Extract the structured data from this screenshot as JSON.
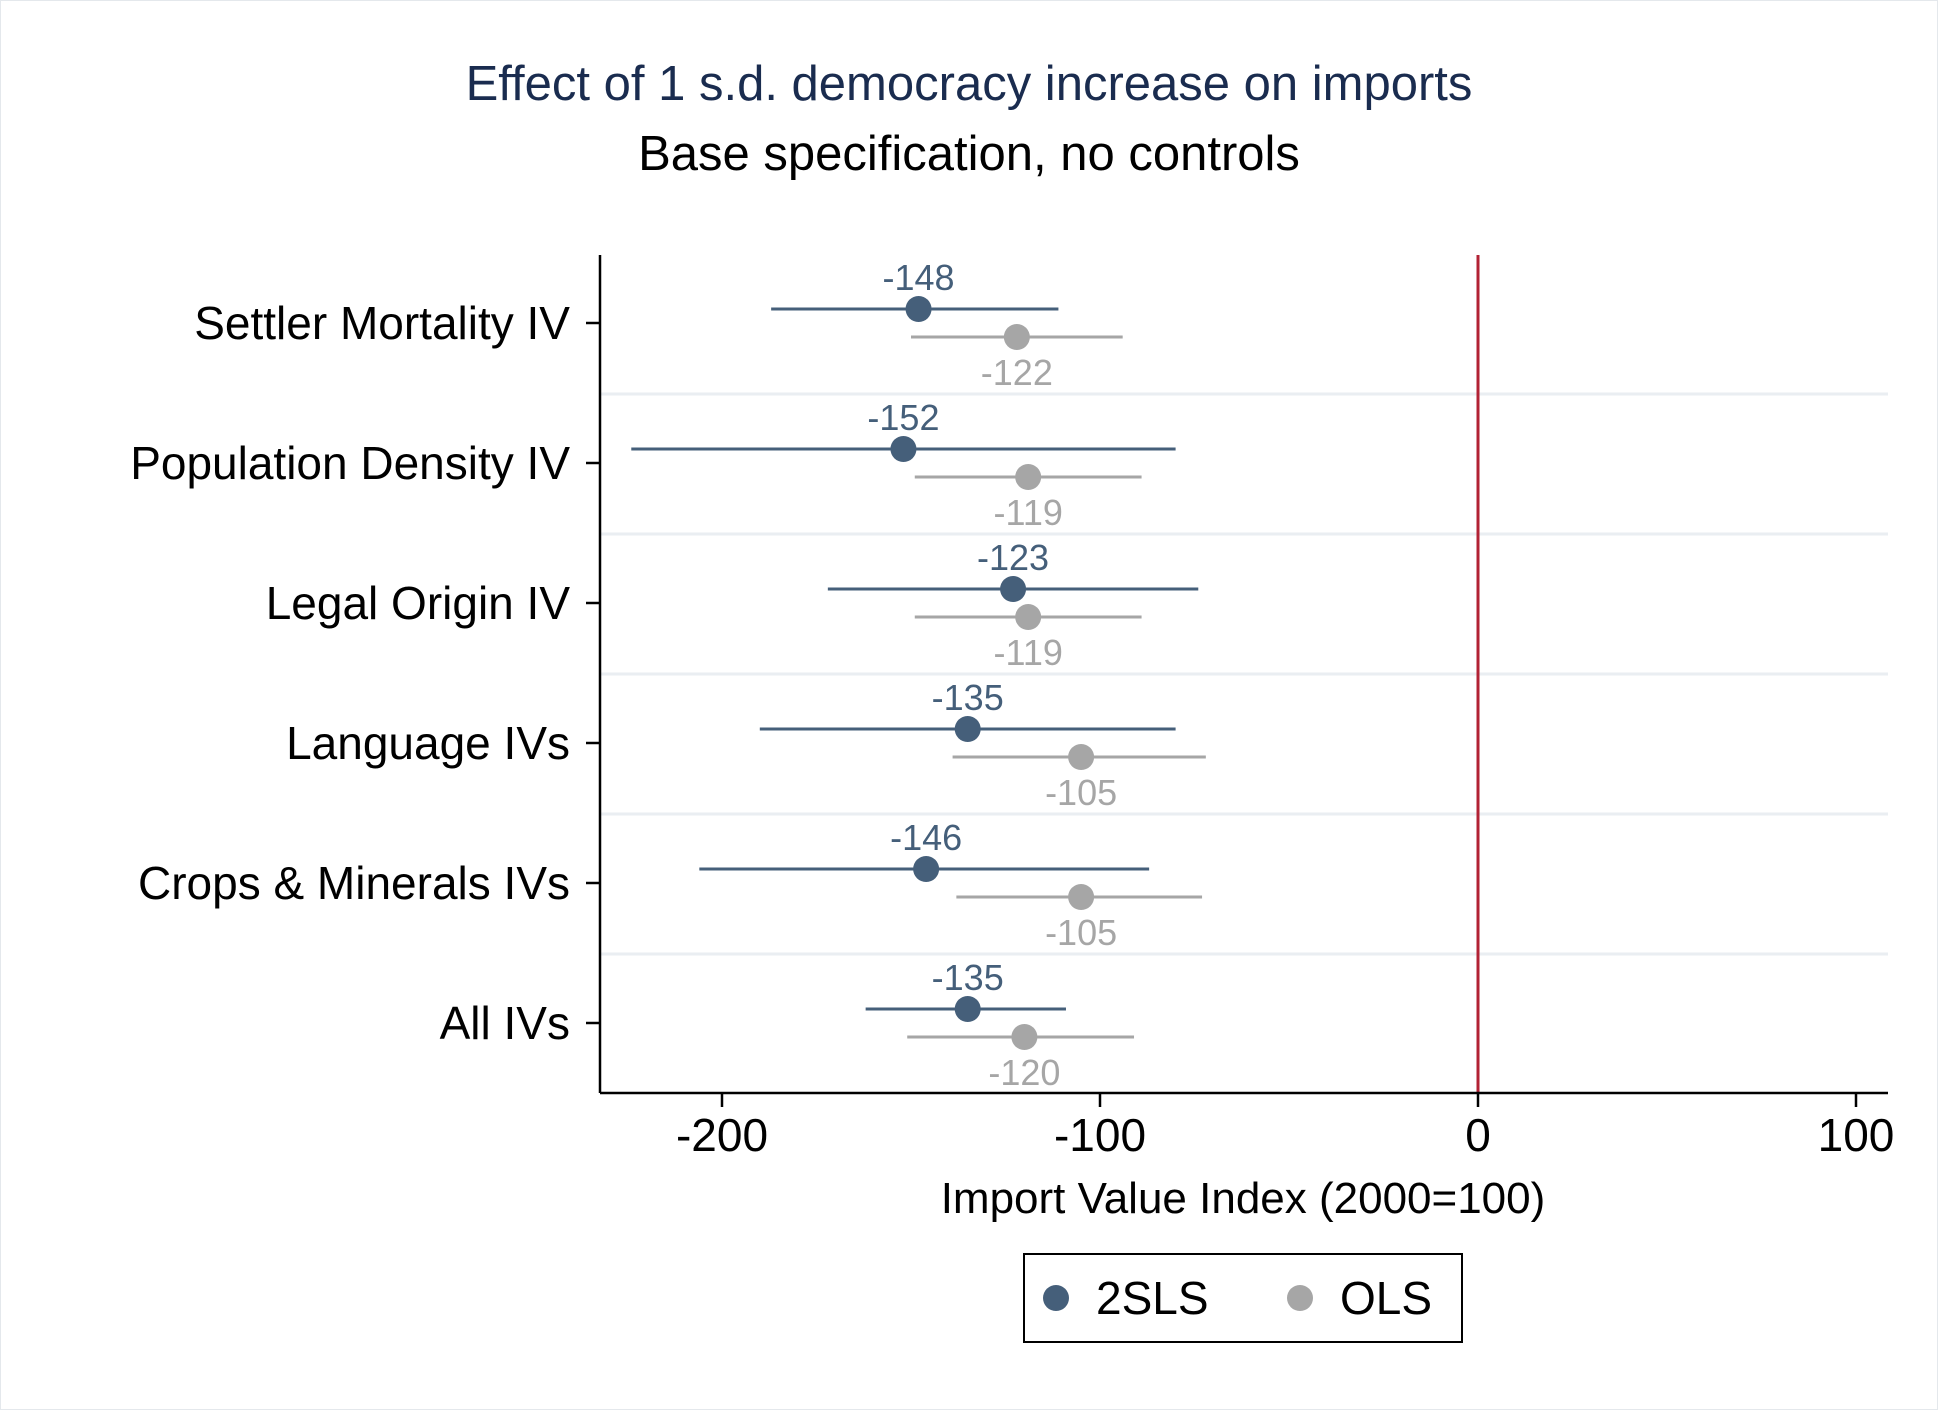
{
  "chart_data": {
    "type": "coefficient-plot",
    "title": "Effect of 1 s.d. democracy increase on imports",
    "subtitle": "Base specification, no controls",
    "xlabel": "Import Value Index (2000=100)",
    "xlim": [
      -233,
      108
    ],
    "xticks": [
      -200,
      -100,
      0,
      100
    ],
    "xtick_labels": [
      "-200",
      "-100",
      "0",
      "100"
    ],
    "reference_line": {
      "x": 0,
      "color": "#b22234"
    },
    "grid": "horizontal separators between categories",
    "legend": "bottom-center",
    "categories": [
      "Settler Mortality IV",
      "Population Density IV",
      "Legal Origin IV",
      "Language IVs",
      "Crops & Minerals IVs",
      "All IVs"
    ],
    "series": [
      {
        "name": "2SLS",
        "color": "#455f7a",
        "estimates": [
          -148,
          -152,
          -123,
          -135,
          -146,
          -135
        ],
        "labels": [
          "-148",
          "-152",
          "-123",
          "-135",
          "-146",
          "-135"
        ],
        "ci_low": [
          -187,
          -224,
          -172,
          -190,
          -206,
          -162
        ],
        "ci_high": [
          -111,
          -80,
          -74,
          -80,
          -87,
          -109
        ],
        "label_position": "above"
      },
      {
        "name": "OLS",
        "color": "#a6a6a6",
        "estimates": [
          -122,
          -119,
          -119,
          -105,
          -105,
          -120
        ],
        "labels": [
          "-122",
          "-119",
          "-119",
          "-105",
          "-105",
          "-120"
        ],
        "ci_low": [
          -150,
          -149,
          -149,
          -139,
          -138,
          -151
        ],
        "ci_high": [
          -94,
          -89,
          -89,
          -72,
          -73,
          -91
        ],
        "label_position": "below"
      }
    ]
  }
}
